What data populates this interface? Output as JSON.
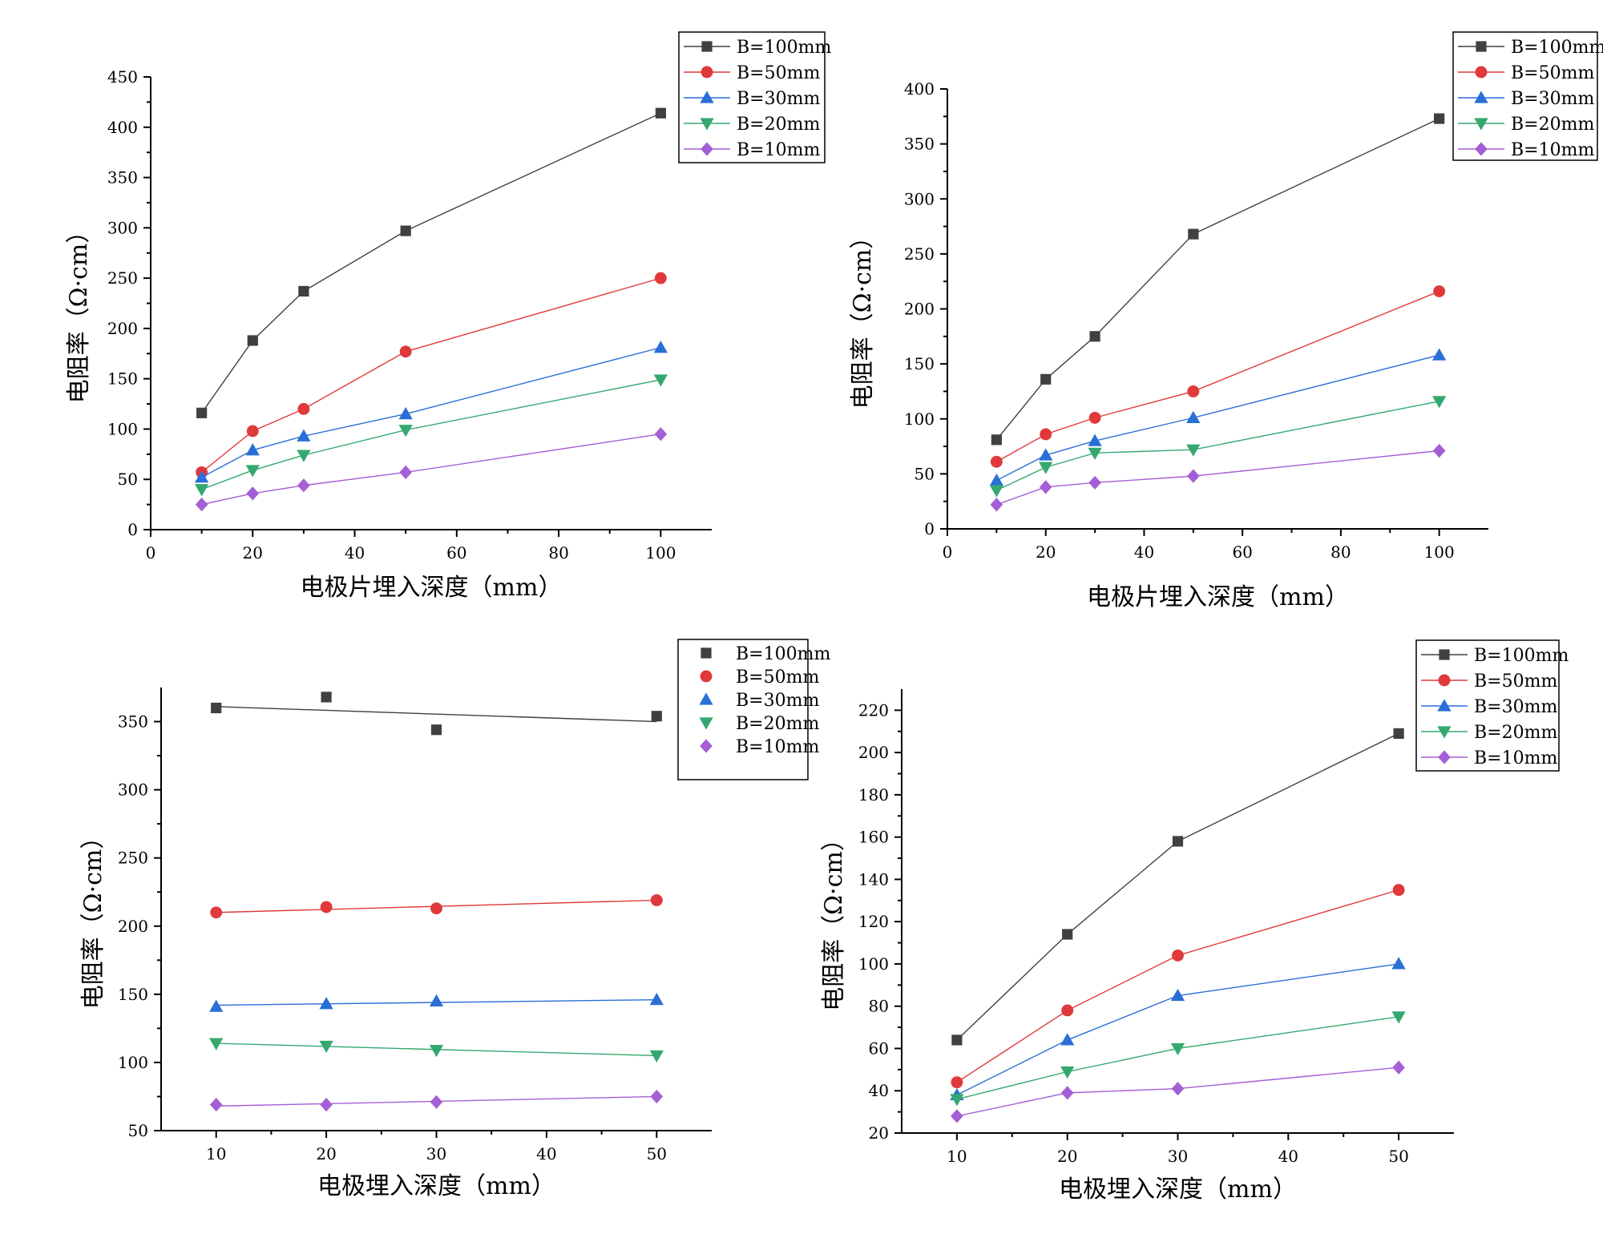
{
  "colors": {
    "B=100mm": "#404040",
    "B=50mm": "#e0393b",
    "B=30mm": "#2a6fd6",
    "B=20mm": "#35a870",
    "B=10mm": "#a55fd6"
  },
  "markers": {
    "B=100mm": "square",
    "B=50mm": "circle",
    "B=30mm": "triangle-up",
    "B=20mm": "triangle-down",
    "B=10mm": "diamond"
  },
  "chart_data": [
    {
      "type": "line",
      "xlabel": "电极片埋入深度（mm）",
      "ylabel": "电阻率（Ω·cm）",
      "xlim": [
        0,
        110
      ],
      "ylim": [
        0,
        450
      ],
      "xticks": [
        0,
        20,
        40,
        60,
        80,
        100
      ],
      "yticks": [
        0,
        50,
        100,
        150,
        200,
        250,
        300,
        350,
        400,
        450
      ],
      "legend_position": "top-right",
      "x": [
        10,
        20,
        30,
        50,
        100
      ],
      "series": [
        {
          "name": "B=100mm",
          "values": [
            116,
            188,
            237,
            297,
            414
          ]
        },
        {
          "name": "B=50mm",
          "values": [
            57,
            98,
            120,
            177,
            250
          ]
        },
        {
          "name": "B=30mm",
          "values": [
            52,
            79,
            93,
            115,
            181
          ]
        },
        {
          "name": "B=20mm",
          "values": [
            40,
            59,
            74,
            99,
            149
          ]
        },
        {
          "name": "B=10mm",
          "values": [
            25,
            36,
            44,
            57,
            95
          ]
        }
      ]
    },
    {
      "type": "line",
      "xlabel": "电极片埋入深度（mm）",
      "ylabel": "电阻率（Ω·cm）",
      "xlim": [
        0,
        110
      ],
      "ylim": [
        0,
        400
      ],
      "xticks": [
        0,
        20,
        40,
        60,
        80,
        100
      ],
      "yticks": [
        0,
        50,
        100,
        150,
        200,
        250,
        300,
        350,
        400
      ],
      "legend_position": "top-right",
      "x": [
        10,
        20,
        30,
        50,
        100
      ],
      "series": [
        {
          "name": "B=100mm",
          "values": [
            81,
            136,
            175,
            268,
            373
          ]
        },
        {
          "name": "B=50mm",
          "values": [
            61,
            86,
            101,
            125,
            216
          ]
        },
        {
          "name": "B=30mm",
          "values": [
            44,
            67,
            80,
            101,
            158
          ]
        },
        {
          "name": "B=20mm",
          "values": [
            35,
            56,
            69,
            72,
            116
          ]
        },
        {
          "name": "B=10mm",
          "values": [
            22,
            38,
            42,
            48,
            71
          ]
        }
      ]
    },
    {
      "type": "scatter",
      "fit_line": true,
      "xlabel": "电极埋入深度（mm）",
      "ylabel": "电阻率（Ω·cm）",
      "xlim": [
        5,
        55
      ],
      "ylim": [
        50,
        375
      ],
      "xticks": [
        10,
        20,
        30,
        40,
        50
      ],
      "yticks": [
        50,
        100,
        150,
        200,
        250,
        300,
        350
      ],
      "legend_position": "top-right",
      "x": [
        10,
        20,
        30,
        50
      ],
      "series": [
        {
          "name": "B=100mm",
          "values": [
            360,
            368,
            344,
            354
          ],
          "fit": [
            361,
            350
          ]
        },
        {
          "name": "B=50mm",
          "values": [
            210,
            214,
            213,
            219
          ],
          "fit": [
            210,
            219
          ]
        },
        {
          "name": "B=30mm",
          "values": [
            141,
            143,
            145,
            146
          ],
          "fit": [
            142,
            146
          ]
        },
        {
          "name": "B=20mm",
          "values": [
            114,
            112,
            109,
            105
          ],
          "fit": [
            114,
            105
          ]
        },
        {
          "name": "B=10mm",
          "values": [
            69,
            69,
            71,
            75
          ],
          "fit": [
            68,
            75
          ]
        }
      ]
    },
    {
      "type": "line",
      "xlabel": "电极埋入深度（mm）",
      "ylabel": "电阻率（Ω·cm）",
      "xlim": [
        5,
        55
      ],
      "ylim": [
        20,
        230
      ],
      "xticks": [
        10,
        20,
        30,
        40,
        50
      ],
      "yticks": [
        20,
        40,
        60,
        80,
        100,
        120,
        140,
        160,
        180,
        200,
        220
      ],
      "legend_position": "top-right",
      "x": [
        10,
        20,
        30,
        50
      ],
      "series": [
        {
          "name": "B=100mm",
          "values": [
            64,
            114,
            158,
            209
          ]
        },
        {
          "name": "B=50mm",
          "values": [
            44,
            78,
            104,
            135
          ]
        },
        {
          "name": "B=30mm",
          "values": [
            38,
            64,
            85,
            100
          ]
        },
        {
          "name": "B=20mm",
          "values": [
            36,
            49,
            60,
            75
          ]
        },
        {
          "name": "B=10mm",
          "values": [
            28,
            39,
            41,
            51
          ]
        }
      ]
    }
  ]
}
